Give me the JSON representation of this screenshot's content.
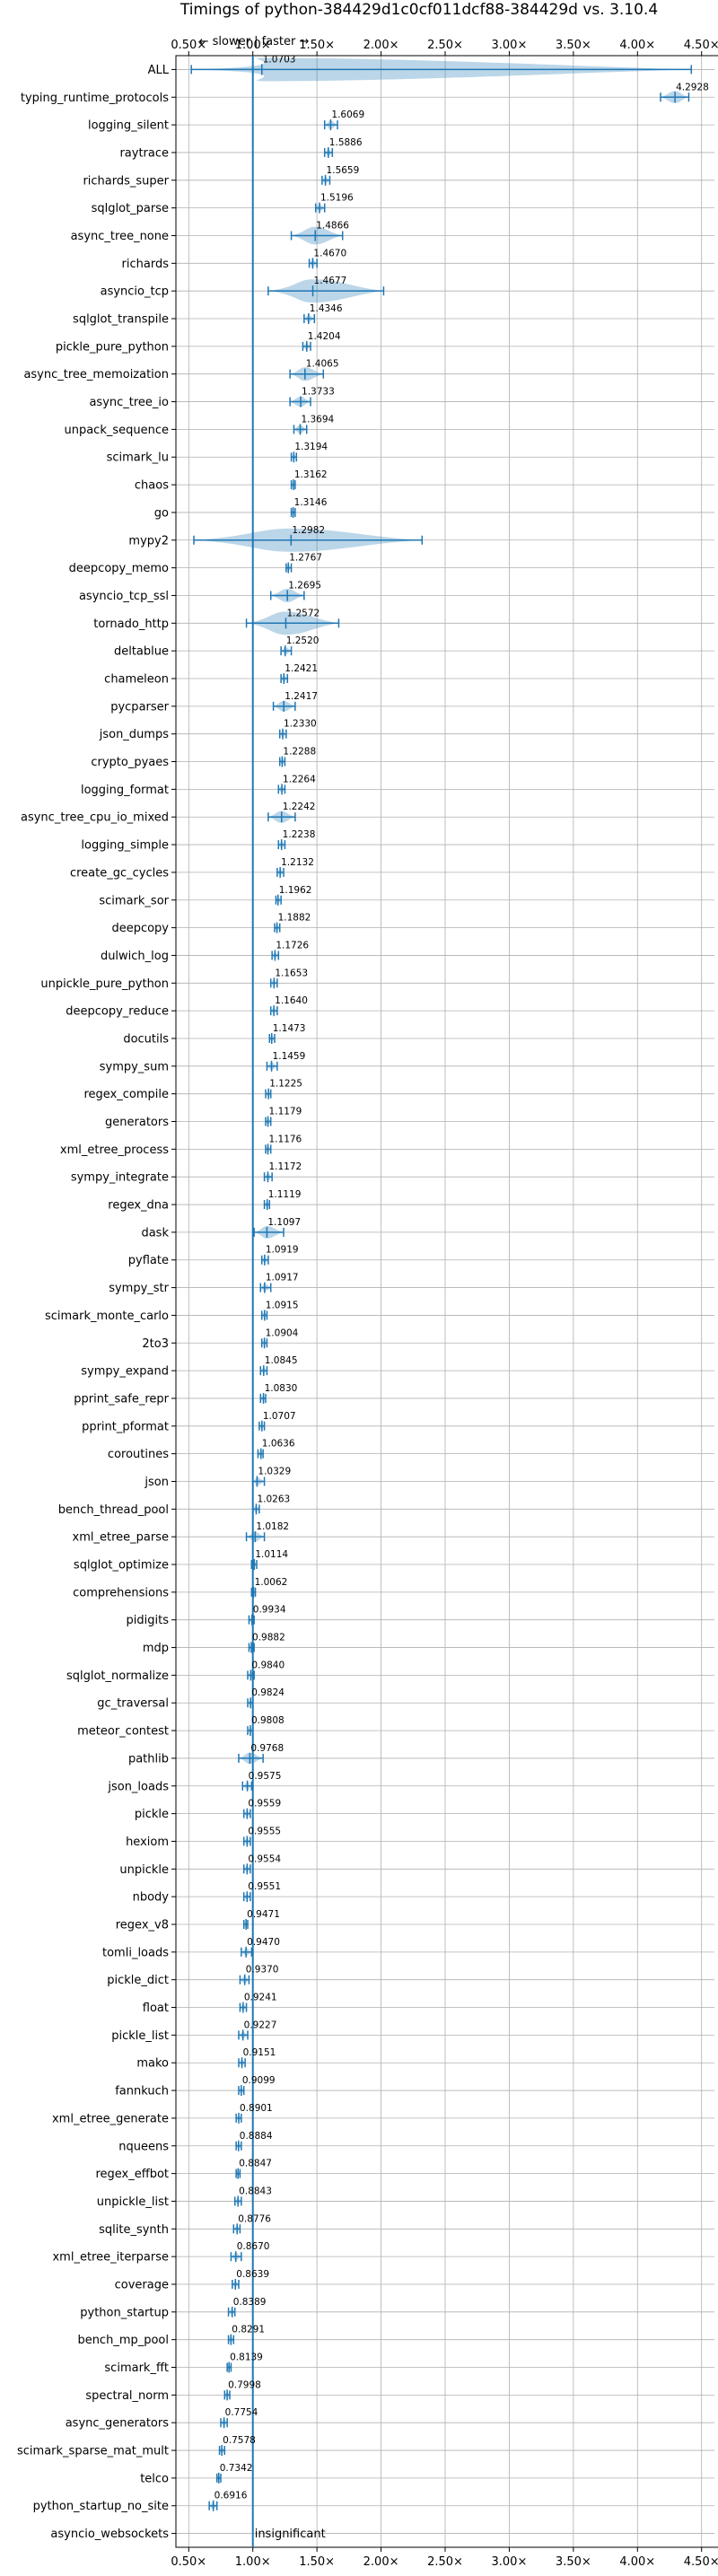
{
  "chart_data": {
    "type": "violin",
    "title": "Timings of python-384429d1c0cf011dcf88-384429d vs. 3.10.4",
    "xlim": [
      0.4,
      4.6
    ],
    "xticks": [
      "0.50×",
      "1.00×",
      "1.50×",
      "2.00×",
      "2.50×",
      "3.00×",
      "3.50×",
      "4.00×",
      "4.50×"
    ],
    "xtick_values": [
      0.5,
      1.0,
      1.5,
      2.0,
      2.5,
      3.0,
      3.5,
      4.0,
      4.5
    ],
    "reference_line": 1.0,
    "direction_note": "← slower | faster →",
    "grid": true,
    "color": "#1f77b4",
    "categories": [
      "ALL",
      "typing_runtime_protocols",
      "logging_silent",
      "raytrace",
      "richards_super",
      "sqlglot_parse",
      "async_tree_none",
      "richards",
      "asyncio_tcp",
      "sqlglot_transpile",
      "pickle_pure_python",
      "async_tree_memoization",
      "async_tree_io",
      "unpack_sequence",
      "scimark_lu",
      "chaos",
      "go",
      "mypy2",
      "deepcopy_memo",
      "asyncio_tcp_ssl",
      "tornado_http",
      "deltablue",
      "chameleon",
      "pycparser",
      "json_dumps",
      "crypto_pyaes",
      "logging_format",
      "async_tree_cpu_io_mixed",
      "logging_simple",
      "create_gc_cycles",
      "scimark_sor",
      "deepcopy",
      "dulwich_log",
      "unpickle_pure_python",
      "deepcopy_reduce",
      "docutils",
      "sympy_sum",
      "regex_compile",
      "generators",
      "xml_etree_process",
      "sympy_integrate",
      "regex_dna",
      "dask",
      "pyflate",
      "sympy_str",
      "scimark_monte_carlo",
      "2to3",
      "sympy_expand",
      "pprint_safe_repr",
      "pprint_pformat",
      "coroutines",
      "json",
      "bench_thread_pool",
      "xml_etree_parse",
      "sqlglot_optimize",
      "comprehensions",
      "pidigits",
      "mdp",
      "sqlglot_normalize",
      "gc_traversal",
      "meteor_contest",
      "pathlib",
      "json_loads",
      "pickle",
      "hexiom",
      "unpickle",
      "nbody",
      "regex_v8",
      "tomli_loads",
      "pickle_dict",
      "float",
      "pickle_list",
      "mako",
      "fannkuch",
      "xml_etree_generate",
      "nqueens",
      "regex_effbot",
      "unpickle_list",
      "sqlite_synth",
      "xml_etree_iterparse",
      "coverage",
      "python_startup",
      "bench_mp_pool",
      "scimark_fft",
      "spectral_norm",
      "async_generators",
      "scimark_sparse_mat_mult",
      "telco",
      "python_startup_no_site",
      "asyncio_websockets"
    ],
    "values": [
      1.0703,
      4.2928,
      1.6069,
      1.5886,
      1.5659,
      1.5196,
      1.4866,
      1.467,
      1.4677,
      1.4346,
      1.4204,
      1.4065,
      1.3733,
      1.3694,
      1.3194,
      1.3162,
      1.3146,
      1.2982,
      1.2767,
      1.2695,
      1.2572,
      1.252,
      1.2421,
      1.2417,
      1.233,
      1.2288,
      1.2264,
      1.2242,
      1.2238,
      1.2132,
      1.1962,
      1.1882,
      1.1726,
      1.1653,
      1.164,
      1.1473,
      1.1459,
      1.1225,
      1.1179,
      1.1176,
      1.1172,
      1.1119,
      1.1097,
      1.0919,
      1.0917,
      1.0915,
      1.0904,
      1.0845,
      1.083,
      1.0707,
      1.0636,
      1.0329,
      1.0263,
      1.0182,
      1.0114,
      1.0062,
      0.9934,
      0.9882,
      0.984,
      0.9824,
      0.9808,
      0.9768,
      0.9575,
      0.9559,
      0.9555,
      0.9554,
      0.9551,
      0.9471,
      0.947,
      0.937,
      0.9241,
      0.9227,
      0.9151,
      0.9099,
      0.8901,
      0.8884,
      0.8847,
      0.8843,
      0.8776,
      0.867,
      0.8639,
      0.8389,
      0.8291,
      0.8139,
      0.7998,
      0.7754,
      0.7578,
      0.7342,
      0.6916,
      null
    ],
    "value_labels": [
      "1.0703",
      "4.2928",
      "1.6069",
      "1.5886",
      "1.5659",
      "1.5196",
      "1.4866",
      "1.4670",
      "1.4677",
      "1.4346",
      "1.4204",
      "1.4065",
      "1.3733",
      "1.3694",
      "1.3194",
      "1.3162",
      "1.3146",
      "1.2982",
      "1.2767",
      "1.2695",
      "1.2572",
      "1.2520",
      "1.2421",
      "1.2417",
      "1.2330",
      "1.2288",
      "1.2264",
      "1.2242",
      "1.2238",
      "1.2132",
      "1.1962",
      "1.1882",
      "1.1726",
      "1.1653",
      "1.1640",
      "1.1473",
      "1.1459",
      "1.1225",
      "1.1179",
      "1.1176",
      "1.1172",
      "1.1119",
      "1.1097",
      "1.0919",
      "1.0917",
      "1.0915",
      "1.0904",
      "1.0845",
      "1.0830",
      "1.0707",
      "1.0636",
      "1.0329",
      "1.0263",
      "1.0182",
      "1.0114",
      "1.0062",
      "0.9934",
      "0.9882",
      "0.9840",
      "0.9824",
      "0.9808",
      "0.9768",
      "0.9575",
      "0.9559",
      "0.9555",
      "0.9554",
      "0.9551",
      "0.9471",
      "0.9470",
      "0.9370",
      "0.9241",
      "0.9227",
      "0.9151",
      "0.9099",
      "0.8901",
      "0.8884",
      "0.8847",
      "0.8843",
      "0.8776",
      "0.8670",
      "0.8639",
      "0.8389",
      "0.8291",
      "0.8139",
      "0.7998",
      "0.7754",
      "0.7578",
      "0.7342",
      "0.6916",
      "insignificant"
    ],
    "ranges": [
      [
        0.52,
        4.42
      ],
      [
        4.18,
        4.4
      ],
      [
        1.56,
        1.66
      ],
      [
        1.56,
        1.62
      ],
      [
        1.54,
        1.6
      ],
      [
        1.49,
        1.56
      ],
      [
        1.3,
        1.7
      ],
      [
        1.44,
        1.5
      ],
      [
        1.12,
        2.02
      ],
      [
        1.4,
        1.48
      ],
      [
        1.39,
        1.45
      ],
      [
        1.29,
        1.55
      ],
      [
        1.29,
        1.45
      ],
      [
        1.32,
        1.42
      ],
      [
        1.3,
        1.34
      ],
      [
        1.3,
        1.33
      ],
      [
        1.3,
        1.33
      ],
      [
        0.54,
        2.32
      ],
      [
        1.26,
        1.3
      ],
      [
        1.14,
        1.4
      ],
      [
        0.95,
        1.67
      ],
      [
        1.22,
        1.3
      ],
      [
        1.22,
        1.27
      ],
      [
        1.16,
        1.33
      ],
      [
        1.21,
        1.26
      ],
      [
        1.21,
        1.25
      ],
      [
        1.2,
        1.25
      ],
      [
        1.12,
        1.33
      ],
      [
        1.2,
        1.25
      ],
      [
        1.19,
        1.24
      ],
      [
        1.18,
        1.22
      ],
      [
        1.17,
        1.21
      ],
      [
        1.15,
        1.2
      ],
      [
        1.14,
        1.19
      ],
      [
        1.14,
        1.19
      ],
      [
        1.13,
        1.17
      ],
      [
        1.11,
        1.19
      ],
      [
        1.1,
        1.14
      ],
      [
        1.1,
        1.14
      ],
      [
        1.1,
        1.14
      ],
      [
        1.09,
        1.15
      ],
      [
        1.09,
        1.13
      ],
      [
        1.01,
        1.24
      ],
      [
        1.07,
        1.12
      ],
      [
        1.06,
        1.14
      ],
      [
        1.07,
        1.11
      ],
      [
        1.07,
        1.11
      ],
      [
        1.06,
        1.11
      ],
      [
        1.06,
        1.1
      ],
      [
        1.05,
        1.09
      ],
      [
        1.04,
        1.08
      ],
      [
        1.0,
        1.09
      ],
      [
        1.0,
        1.05
      ],
      [
        0.95,
        1.09
      ],
      [
        0.99,
        1.03
      ],
      [
        0.99,
        1.02
      ],
      [
        0.97,
        1.01
      ],
      [
        0.97,
        1.01
      ],
      [
        0.96,
        1.01
      ],
      [
        0.96,
        1.0
      ],
      [
        0.96,
        1.0
      ],
      [
        0.89,
        1.08
      ],
      [
        0.92,
        0.99
      ],
      [
        0.93,
        0.98
      ],
      [
        0.93,
        0.98
      ],
      [
        0.93,
        0.98
      ],
      [
        0.93,
        0.98
      ],
      [
        0.93,
        0.96
      ],
      [
        0.91,
        0.99
      ],
      [
        0.9,
        0.97
      ],
      [
        0.9,
        0.95
      ],
      [
        0.89,
        0.96
      ],
      [
        0.89,
        0.94
      ],
      [
        0.89,
        0.93
      ],
      [
        0.87,
        0.91
      ],
      [
        0.87,
        0.91
      ],
      [
        0.87,
        0.9
      ],
      [
        0.86,
        0.91
      ],
      [
        0.85,
        0.9
      ],
      [
        0.83,
        0.91
      ],
      [
        0.84,
        0.89
      ],
      [
        0.81,
        0.86
      ],
      [
        0.81,
        0.85
      ],
      [
        0.8,
        0.83
      ],
      [
        0.78,
        0.82
      ],
      [
        0.75,
        0.8
      ],
      [
        0.74,
        0.78
      ],
      [
        0.72,
        0.75
      ],
      [
        0.66,
        0.72
      ],
      null
    ]
  }
}
